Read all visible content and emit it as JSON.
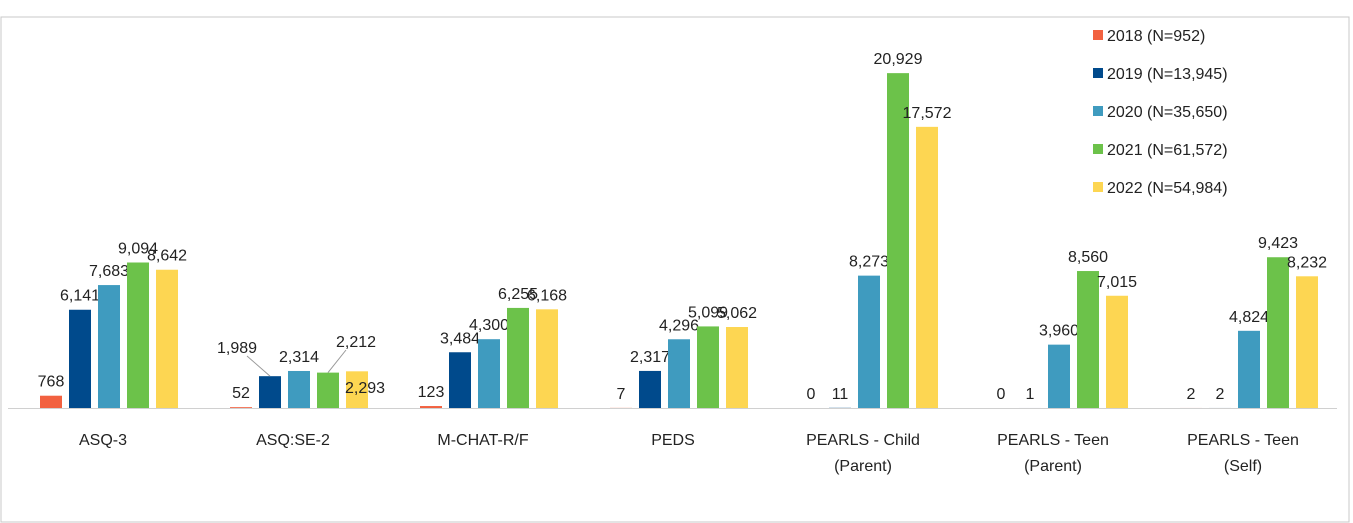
{
  "chart_data": {
    "type": "bar",
    "categories": [
      "ASQ-3",
      "ASQ:SE-2",
      "M-CHAT-R/F",
      "PEDS",
      "PEARLS - Child\n(Parent)",
      "PEARLS - Teen\n(Parent)",
      "PEARLS - Teen\n(Self)"
    ],
    "series": [
      {
        "name": "2018 (N=952)",
        "color": "#f26140",
        "values": [
          768,
          52,
          123,
          7,
          0,
          0,
          2
        ],
        "value_labels": [
          "768",
          "52",
          "123",
          "7",
          "0",
          "0",
          "2"
        ]
      },
      {
        "name": "2019 (N=13,945)",
        "color": "#004a8c",
        "values": [
          6141,
          1989,
          3484,
          2317,
          11,
          1,
          2
        ],
        "value_labels": [
          "6,141",
          "1,989",
          "3,484",
          "2,317",
          "11",
          "1",
          "2"
        ]
      },
      {
        "name": "2020 (N=35,650)",
        "color": "#3f9bbf",
        "values": [
          7683,
          2314,
          4300,
          4296,
          8273,
          3960,
          4824
        ],
        "value_labels": [
          "7,683",
          "2,314",
          "4,300",
          "4,296",
          "8,273",
          "3,960",
          "4,824"
        ]
      },
      {
        "name": "2021 (N=61,572)",
        "color": "#6cc24a",
        "values": [
          9094,
          2212,
          6255,
          5099,
          20929,
          8560,
          9423
        ],
        "value_labels": [
          "9,094",
          "2,212",
          "6,255",
          "5,099",
          "20,929",
          "8,560",
          "9,423"
        ]
      },
      {
        "name": "2022 (N=54,984)",
        "color": "#fdd652",
        "values": [
          8642,
          2293,
          6168,
          5062,
          17572,
          7015,
          8232
        ],
        "value_labels": [
          "8,642",
          "2,293",
          "6,168",
          "5,062",
          "17,572",
          "7,015",
          "8,232"
        ]
      }
    ],
    "ylim": [
      0,
      25000
    ],
    "legend": "top-right"
  }
}
